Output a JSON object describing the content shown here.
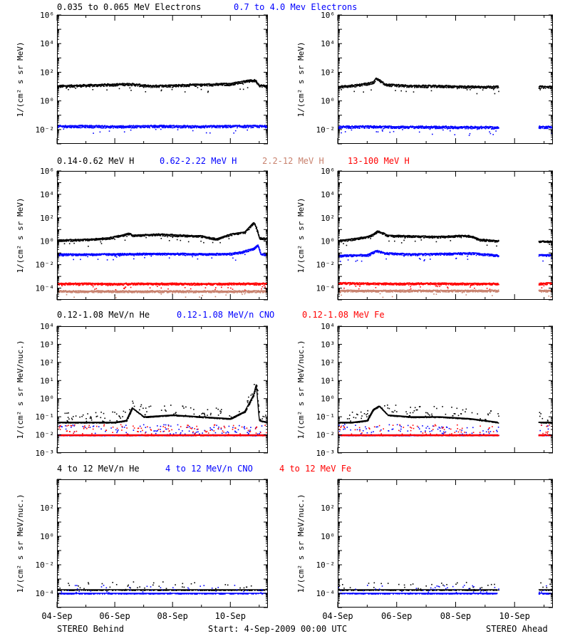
{
  "figure": {
    "footer_left": "STEREO Behind",
    "footer_center": "Start:  4-Sep-2009 00:00 UTC",
    "footer_right": "STEREO Ahead"
  },
  "colors": {
    "black": "#000000",
    "blue": "#0000ff",
    "tan": "#c8826e",
    "red": "#ff0000"
  },
  "chart_data": [
    {
      "id": "electrons",
      "type": "scatter",
      "ylabel": "1/(cm² s sr MeV)",
      "yscale": "log",
      "ylim_exp": [
        -3,
        6
      ],
      "ytick_exps": [
        -2,
        0,
        2,
        4,
        6
      ],
      "ytick_labels": [
        "10⁻²",
        "10⁰",
        "10²",
        "10⁴",
        "10⁶"
      ],
      "legend": [
        {
          "label": "0.035 to 0.065 MeV Electrons",
          "color": "#000000"
        },
        {
          "label": "0.7 to 4.0 Mev Electrons",
          "color": "#0000ff"
        }
      ],
      "panels": [
        {
          "name": "STEREO Behind",
          "series": [
            {
              "name": "0.035 to 0.065 MeV Electrons",
              "color": "#000000",
              "t": [
                0,
                1,
                1.8,
                2.5,
                3.2,
                4.0,
                5.0,
                6.0,
                6.5,
                6.85,
                7.0,
                7.3
              ],
              "log_y": [
                1.05,
                1.1,
                1.15,
                1.2,
                1.05,
                1.1,
                1.15,
                1.2,
                1.4,
                1.45,
                1.1,
                1.05
              ]
            },
            {
              "name": "0.7 to 4.0 Mev Electrons",
              "color": "#0000ff",
              "t": [
                0,
                1,
                2,
                3,
                4,
                5,
                6,
                7,
                7.3
              ],
              "log_y": [
                -1.75,
                -1.75,
                -1.78,
                -1.75,
                -1.75,
                -1.77,
                -1.75,
                -1.75,
                -1.75
              ]
            }
          ]
        },
        {
          "name": "STEREO Ahead",
          "gaps": [
            [
              5.45,
              6.8
            ]
          ],
          "series": [
            {
              "name": "0.035 to 0.065 MeV Electrons",
              "color": "#000000",
              "t": [
                0,
                0.6,
                1.2,
                1.3,
                1.6,
                2.5,
                3.5,
                4.5,
                5.45,
                6.8,
                7.3
              ],
              "log_y": [
                1.0,
                1.1,
                1.3,
                1.6,
                1.15,
                1.05,
                1.05,
                1.0,
                1.0,
                1.0,
                1.0
              ]
            },
            {
              "name": "0.7 to 4.0 Mev Electrons",
              "color": "#0000ff",
              "t": [
                0,
                1,
                2,
                3,
                4,
                5,
                5.45,
                6.8,
                7.3
              ],
              "log_y": [
                -1.8,
                -1.78,
                -1.8,
                -1.8,
                -1.82,
                -1.82,
                -1.85,
                -1.8,
                -1.8
              ]
            }
          ]
        }
      ]
    },
    {
      "id": "protons",
      "type": "scatter",
      "ylabel": "1/(cm² s sr MeV)",
      "yscale": "log",
      "ylim_exp": [
        -5,
        6
      ],
      "ytick_exps": [
        -4,
        -2,
        0,
        2,
        4,
        6
      ],
      "ytick_labels": [
        "10⁻⁴",
        "10⁻²",
        "10⁰",
        "10²",
        "10⁴",
        "10⁶"
      ],
      "legend": [
        {
          "label": "0.14-0.62 MeV H",
          "color": "#000000"
        },
        {
          "label": "0.62-2.22 MeV H",
          "color": "#0000ff"
        },
        {
          "label": "2.2-12 MeV H",
          "color": "#c8826e"
        },
        {
          "label": "13-100 MeV H",
          "color": "#ff0000"
        }
      ],
      "panels": [
        {
          "name": "STEREO Behind",
          "series": [
            {
              "name": "0.14-0.62 MeV H",
              "color": "#000000",
              "t": [
                0,
                1,
                1.8,
                2.2,
                2.5,
                2.6,
                3.0,
                3.5,
                4.5,
                5.0,
                5.5,
                6.0,
                6.5,
                6.8,
                6.9,
                7.0,
                7.3
              ],
              "log_y": [
                0.1,
                0.15,
                0.3,
                0.5,
                0.7,
                0.5,
                0.55,
                0.6,
                0.5,
                0.45,
                0.2,
                0.6,
                0.8,
                1.6,
                1.2,
                0.3,
                0.2
              ]
            },
            {
              "name": "0.62-2.22 MeV H",
              "color": "#0000ff",
              "t": [
                0,
                1,
                2,
                3,
                4,
                5,
                6,
                6.4,
                6.8,
                6.95,
                7.05,
                7.3
              ],
              "log_y": [
                -1.1,
                -1.1,
                -1.08,
                -1.05,
                -1.05,
                -1.08,
                -1.05,
                -0.9,
                -0.6,
                -0.3,
                -1.1,
                -1.1
              ]
            },
            {
              "name": "13-100 MeV H",
              "color": "#ff0000",
              "t": [
                0,
                1,
                2,
                3,
                4,
                5,
                6,
                7,
                7.3
              ],
              "log_y": [
                -3.6,
                -3.6,
                -3.62,
                -3.6,
                -3.6,
                -3.62,
                -3.6,
                -3.6,
                -3.6
              ]
            },
            {
              "name": "2.2-12 MeV H",
              "color": "#c8826e",
              "t": [
                0,
                1,
                2,
                3,
                4,
                5,
                6,
                7,
                7.3
              ],
              "log_y": [
                -4.25,
                -4.25,
                -4.25,
                -4.25,
                -4.25,
                -4.25,
                -4.25,
                -4.25,
                -4.25
              ]
            }
          ]
        },
        {
          "name": "STEREO Ahead",
          "gaps": [
            [
              5.45,
              6.8
            ]
          ],
          "series": [
            {
              "name": "0.14-0.62 MeV H",
              "color": "#000000",
              "t": [
                0,
                0.5,
                1.0,
                1.2,
                1.35,
                1.7,
                2.5,
                3.5,
                4.2,
                4.5,
                4.8,
                5.45,
                6.8,
                7.3
              ],
              "log_y": [
                0.05,
                0.2,
                0.4,
                0.6,
                0.9,
                0.5,
                0.45,
                0.4,
                0.5,
                0.45,
                0.15,
                0.05,
                0.0,
                0.0
              ]
            },
            {
              "name": "0.62-2.22 MeV H",
              "color": "#0000ff",
              "t": [
                0,
                1,
                1.3,
                1.6,
                2.5,
                3.5,
                4.5,
                5.0,
                5.45,
                6.8,
                7.3
              ],
              "log_y": [
                -1.2,
                -1.15,
                -0.8,
                -1.0,
                -1.1,
                -1.05,
                -1.0,
                -1.1,
                -1.2,
                -1.15,
                -1.15
              ]
            },
            {
              "name": "13-100 MeV H",
              "color": "#ff0000",
              "t": [
                0,
                1,
                2,
                3,
                4,
                5,
                5.45,
                6.8,
                7.3
              ],
              "log_y": [
                -3.55,
                -3.58,
                -3.6,
                -3.58,
                -3.6,
                -3.6,
                -3.6,
                -3.6,
                -3.55
              ]
            },
            {
              "name": "2.2-12 MeV H",
              "color": "#c8826e",
              "t": [
                0,
                1,
                2,
                3,
                4,
                5,
                5.45,
                6.8,
                7.3
              ],
              "log_y": [
                -4.2,
                -4.2,
                -4.2,
                -4.2,
                -4.2,
                -4.2,
                -4.2,
                -4.2,
                -4.2
              ]
            }
          ]
        }
      ]
    },
    {
      "id": "heavy-low",
      "type": "scatter",
      "ylabel": "1/(cm² s sr MeV/nuc.)",
      "yscale": "log",
      "ylim_exp": [
        -3,
        4
      ],
      "ytick_exps": [
        -3,
        -2,
        -1,
        0,
        1,
        2,
        3,
        4
      ],
      "ytick_labels": [
        "10⁻³",
        "10⁻²",
        "10⁻¹",
        "10⁰",
        "10¹",
        "10²",
        "10³",
        "10⁴"
      ],
      "legend": [
        {
          "label": "0.12-1.08 MeV/n He",
          "color": "#000000"
        },
        {
          "label": "0.12-1.08 MeV/n CNO",
          "color": "#0000ff"
        },
        {
          "label": "0.12-1.08 MeV Fe",
          "color": "#ff0000"
        }
      ],
      "panels": [
        {
          "name": "STEREO Behind",
          "series": [
            {
              "name": "0.12-1.08 MeV/n He",
              "color": "#000000",
              "t": [
                0,
                1,
                2,
                2.4,
                2.6,
                3,
                4,
                5,
                6,
                6.5,
                6.8,
                6.9,
                7.0,
                7.3
              ],
              "log_y": [
                -1.3,
                -1.3,
                -1.3,
                -1.2,
                -0.5,
                -1.0,
                -0.9,
                -1.0,
                -1.1,
                -0.7,
                0.2,
                0.8,
                -1.2,
                -1.3
              ]
            },
            {
              "name": "0.12-1.08 MeV/n CNO",
              "color": "#0000ff",
              "t": [
                0,
                1,
                2,
                3,
                4,
                5,
                6,
                7,
                7.3
              ],
              "log_y": [
                -2.0,
                -2.0,
                -2.0,
                -2.0,
                -2.0,
                -2.0,
                -2.0,
                -2.0,
                -2.0
              ]
            },
            {
              "name": "0.12-1.08 MeV Fe",
              "color": "#ff0000",
              "t": [
                0,
                1,
                2,
                3,
                4,
                5,
                6,
                7,
                7.3
              ],
              "log_y": [
                -2.0,
                -2.0,
                -2.0,
                -2.0,
                -2.0,
                -2.0,
                -2.0,
                -2.0,
                -2.0
              ]
            }
          ]
        },
        {
          "name": "STEREO Ahead",
          "gaps": [
            [
              5.45,
              6.8
            ]
          ],
          "series": [
            {
              "name": "0.12-1.08 MeV/n He",
              "color": "#000000",
              "t": [
                0,
                0.5,
                1.0,
                1.2,
                1.4,
                1.7,
                2.5,
                3.5,
                4.5,
                5.45,
                6.8,
                7.3
              ],
              "log_y": [
                -1.3,
                -1.3,
                -1.2,
                -0.6,
                -0.4,
                -0.9,
                -1.0,
                -1.0,
                -1.1,
                -1.3,
                -1.3,
                -1.3
              ]
            },
            {
              "name": "0.12-1.08 MeV/n CNO",
              "color": "#0000ff",
              "t": [
                0,
                1,
                2,
                3,
                4,
                5,
                5.45,
                6.8,
                7.3
              ],
              "log_y": [
                -2.0,
                -2.0,
                -2.0,
                -2.0,
                -2.0,
                -2.0,
                -2.0,
                -2.0,
                -2.0
              ]
            },
            {
              "name": "0.12-1.08 MeV Fe",
              "color": "#ff0000",
              "t": [
                0,
                1,
                2,
                3,
                4,
                5,
                5.45,
                6.8,
                7.3
              ],
              "log_y": [
                -2.0,
                -2.0,
                -2.0,
                -2.0,
                -2.0,
                -2.0,
                -2.0,
                -2.0,
                -2.0
              ]
            }
          ]
        }
      ]
    },
    {
      "id": "heavy-high",
      "type": "scatter",
      "ylabel": "1/(cm² s sr MeV/nuc.)",
      "yscale": "log",
      "ylim_exp": [
        -5,
        4
      ],
      "ytick_exps": [
        -4,
        -2,
        0,
        2
      ],
      "ytick_labels": [
        "10⁻⁴",
        "10⁻²",
        "10⁰",
        "10²"
      ],
      "legend": [
        {
          "label": "4 to 12 MeV/n He",
          "color": "#000000"
        },
        {
          "label": "4 to 12 MeV/n CNO",
          "color": "#0000ff"
        },
        {
          "label": "4 to 12 MeV Fe",
          "color": "#ff0000"
        }
      ],
      "panels": [
        {
          "name": "STEREO Behind",
          "series": [
            {
              "name": "4 to 12 MeV/n He",
              "color": "#000000",
              "t": [
                0,
                1,
                2,
                3,
                4,
                5,
                6,
                7,
                7.3
              ],
              "log_y": [
                -3.75,
                -3.75,
                -3.75,
                -3.75,
                -3.75,
                -3.75,
                -3.75,
                -3.75,
                -3.75
              ]
            },
            {
              "name": "4 to 12 MeV/n CNO",
              "color": "#0000ff",
              "t": [
                0,
                1,
                2,
                3,
                4,
                5,
                6,
                7,
                7.3
              ],
              "log_y": [
                -4.0,
                -4.0,
                -4.0,
                -4.0,
                -4.0,
                -4.0,
                -4.0,
                -4.0,
                -4.0
              ]
            }
          ]
        },
        {
          "name": "STEREO Ahead",
          "gaps": [
            [
              5.45,
              6.8
            ]
          ],
          "series": [
            {
              "name": "4 to 12 MeV/n He",
              "color": "#000000",
              "t": [
                0,
                1,
                2,
                3,
                4,
                5,
                5.45,
                6.8,
                7.3
              ],
              "log_y": [
                -3.75,
                -3.75,
                -3.75,
                -3.75,
                -3.75,
                -3.75,
                -3.75,
                -3.75,
                -3.75
              ]
            },
            {
              "name": "4 to 12 MeV/n CNO",
              "color": "#0000ff",
              "t": [
                0,
                1,
                2,
                3,
                4,
                5,
                5.45,
                6.8,
                7.3
              ],
              "log_y": [
                -4.0,
                -4.0,
                -4.0,
                -4.0,
                -4.0,
                -4.0,
                -4.0,
                -4.0,
                -4.0
              ]
            }
          ]
        }
      ]
    }
  ],
  "x_axis": {
    "unit": "days since 04-Sep-2009",
    "xlim": [
      0,
      7.3
    ],
    "tick_days": [
      0,
      2,
      4,
      6
    ],
    "tick_labels": [
      "04-Sep",
      "06-Sep",
      "08-Sep",
      "10-Sep"
    ]
  }
}
